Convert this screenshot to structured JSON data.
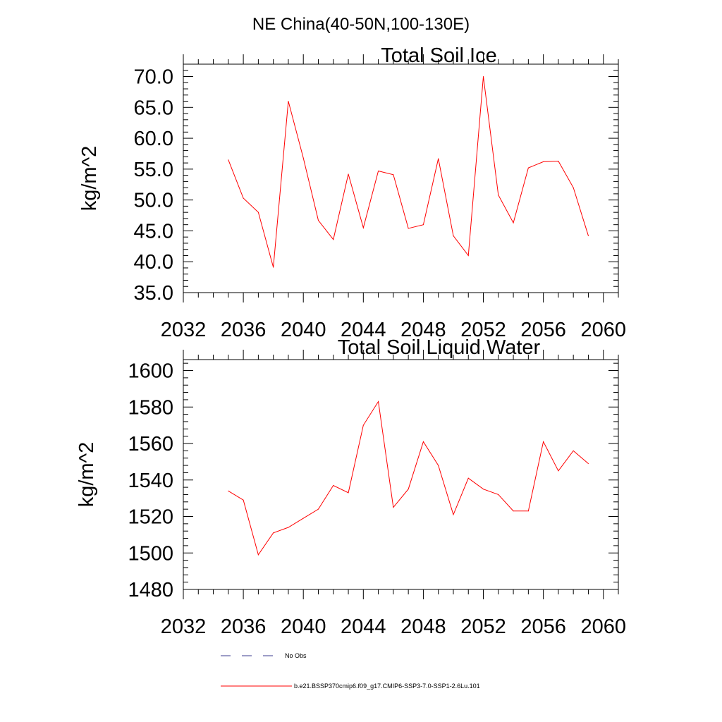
{
  "figure_title": "NE China(40-50N,100-130E)",
  "colors": {
    "series": "#ff0000",
    "obs": "#3b3b8f",
    "axis": "#000000"
  },
  "legend": {
    "placement": "bottom",
    "entries": [
      {
        "label": "No Obs",
        "style": "dashed",
        "color": "#3b3b8f"
      },
      {
        "label": "b.e21.BSSP370cmip6.f09_g17.CMIP6-SSP3-7.0-SSP1-2.6Lu.101",
        "style": "solid",
        "color": "#ff0000"
      }
    ]
  },
  "chart_data": [
    {
      "type": "line",
      "title": "Total Soil Ice",
      "xlabel": "",
      "ylabel": "kg/m^2",
      "xlim": [
        2032,
        2061
      ],
      "ylim": [
        35,
        72
      ],
      "xticks": [
        2032,
        2036,
        2040,
        2044,
        2048,
        2052,
        2056,
        2060
      ],
      "xtick_labels": [
        "2032",
        "2036",
        "2040",
        "2044",
        "2048",
        "2052",
        "2056",
        "2060"
      ],
      "yticks": [
        35,
        40,
        45,
        50,
        55,
        60,
        65,
        70
      ],
      "ytick_labels": [
        "35.0",
        "40.0",
        "45.0",
        "50.0",
        "55.0",
        "60.0",
        "65.0",
        "70.0"
      ],
      "grid": false,
      "x": [
        2035,
        2036,
        2037,
        2038,
        2039,
        2040,
        2041,
        2042,
        2043,
        2044,
        2045,
        2046,
        2047,
        2048,
        2049,
        2050,
        2051,
        2052,
        2053,
        2054,
        2055,
        2056,
        2057,
        2058,
        2059
      ],
      "series": [
        {
          "values": [
            56.5,
            50.3,
            48.0,
            39.1,
            66.0,
            56.8,
            46.7,
            43.6,
            54.2,
            45.5,
            54.7,
            54.1,
            45.4,
            46.0,
            56.7,
            44.2,
            41.0,
            70.0,
            50.8,
            46.3,
            55.2,
            56.2,
            56.3,
            52.0,
            44.2
          ]
        }
      ]
    },
    {
      "type": "line",
      "title": "Total Soil Liquid Water",
      "xlabel": "",
      "ylabel": "kg/m^2",
      "xlim": [
        2032,
        2061
      ],
      "ylim": [
        1480,
        1606
      ],
      "xticks": [
        2032,
        2036,
        2040,
        2044,
        2048,
        2052,
        2056,
        2060
      ],
      "xtick_labels": [
        "2032",
        "2036",
        "2040",
        "2044",
        "2048",
        "2052",
        "2056",
        "2060"
      ],
      "yticks": [
        1480,
        1500,
        1520,
        1540,
        1560,
        1580,
        1600
      ],
      "ytick_labels": [
        "1480",
        "1500",
        "1520",
        "1540",
        "1560",
        "1580",
        "1600"
      ],
      "grid": false,
      "x": [
        2035,
        2036,
        2037,
        2038,
        2039,
        2040,
        2041,
        2042,
        2043,
        2044,
        2045,
        2046,
        2047,
        2048,
        2049,
        2050,
        2051,
        2052,
        2053,
        2054,
        2055,
        2056,
        2057,
        2058,
        2059
      ],
      "series": [
        {
          "values": [
            1534,
            1529,
            1499,
            1511,
            1514,
            1519,
            1524,
            1537,
            1533,
            1570,
            1583,
            1525,
            1535,
            1561,
            1548,
            1521,
            1541,
            1535,
            1532,
            1523,
            1523,
            1561,
            1545,
            1556,
            1549
          ]
        }
      ]
    }
  ]
}
